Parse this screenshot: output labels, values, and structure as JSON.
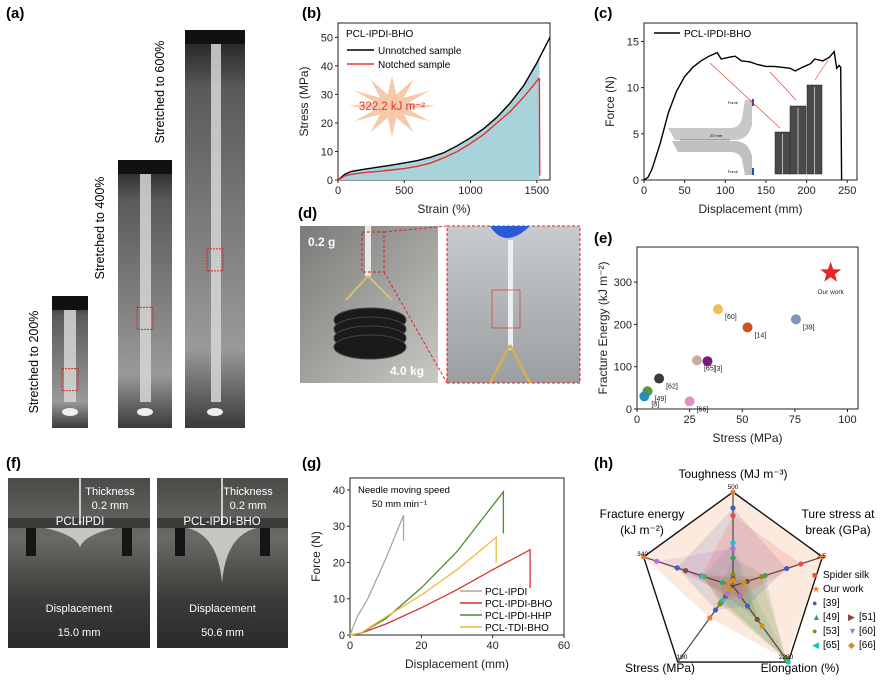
{
  "panel_labels": {
    "a": "(a)",
    "b": "(b)",
    "c": "(c)",
    "d": "(d)",
    "e": "(e)",
    "f": "(f)",
    "g": "(g)",
    "h": "(h)"
  },
  "panel_a": {
    "labels": [
      "Stretched to 200%",
      "Stretched to 400%",
      "Stretched to 600%"
    ]
  },
  "panel_d": {
    "top_mass": "0.2 g",
    "bottom_mass": "4.0 kg"
  },
  "panel_f": {
    "left": {
      "thickness_label": "Thickness",
      "thickness_value": "0.2 mm",
      "sample": "PCL-IPDI",
      "disp_label": "Displacement",
      "disp_value": "15.0 mm"
    },
    "right": {
      "thickness_label": "Thickness",
      "thickness_value": "0.2 mm",
      "sample": "PCL-IPDI-BHO",
      "disp_label": "Displacement",
      "disp_value": "50.6 mm"
    }
  },
  "chart_data": [
    {
      "id": "b",
      "type": "line",
      "xlabel": "Strain (%)",
      "ylabel": "Stress (MPa)",
      "xlim": [
        0,
        1600
      ],
      "ylim": [
        0,
        55
      ],
      "xticks": [
        0,
        500,
        1000,
        1500
      ],
      "yticks": [
        0,
        10,
        20,
        30,
        40,
        50
      ],
      "legend_title": "PCL-IPDI-BHO",
      "legend_placement": "top-left",
      "annotation": "322.2 kJ m⁻²",
      "fill_color": "#a9d3da",
      "series": [
        {
          "name": "Unnotched sample",
          "color": "#000000",
          "points": [
            [
              0,
              0
            ],
            [
              50,
              2
            ],
            [
              100,
              3
            ],
            [
              200,
              3.8
            ],
            [
              300,
              4.5
            ],
            [
              400,
              5.2
            ],
            [
              500,
              6
            ],
            [
              600,
              6.8
            ],
            [
              700,
              8
            ],
            [
              800,
              9.6
            ],
            [
              900,
              12
            ],
            [
              1000,
              14.8
            ],
            [
              1100,
              18
            ],
            [
              1200,
              22
            ],
            [
              1300,
              27
            ],
            [
              1400,
              33
            ],
            [
              1500,
              41
            ],
            [
              1600,
              50
            ]
          ]
        },
        {
          "name": "Notched sample",
          "color": "#e8302a",
          "points": [
            [
              0,
              0
            ],
            [
              50,
              1.4
            ],
            [
              100,
              2
            ],
            [
              200,
              2.6
            ],
            [
              300,
              3
            ],
            [
              400,
              3.5
            ],
            [
              500,
              4
            ],
            [
              600,
              4.8
            ],
            [
              700,
              6
            ],
            [
              800,
              7.8
            ],
            [
              900,
              10
            ],
            [
              1000,
              12.8
            ],
            [
              1100,
              16
            ],
            [
              1200,
              20
            ],
            [
              1300,
              24
            ],
            [
              1400,
              29
            ],
            [
              1480,
              33.5
            ],
            [
              1515,
              35.5
            ],
            [
              1520,
              35.5
            ],
            [
              1522,
              1.5
            ]
          ]
        }
      ]
    },
    {
      "id": "c",
      "type": "line",
      "xlabel": "Displacement (mm)",
      "ylabel": "Force (N)",
      "xlim": [
        0,
        262
      ],
      "ylim": [
        0,
        17
      ],
      "xticks": [
        0,
        50,
        100,
        150,
        200,
        250
      ],
      "yticks": [
        0,
        5,
        10,
        15
      ],
      "legend_placement": "top-left",
      "inset_texts": [
        "Force",
        "Force",
        "20 mm"
      ],
      "series": [
        {
          "name": "PCL-IPDI-BHO",
          "color": "#000000",
          "points": [
            [
              0,
              0
            ],
            [
              5,
              0.3
            ],
            [
              10,
              1.2
            ],
            [
              20,
              4
            ],
            [
              30,
              7.3
            ],
            [
              40,
              9.6
            ],
            [
              50,
              11.2
            ],
            [
              60,
              12.2
            ],
            [
              70,
              12.9
            ],
            [
              80,
              13.4
            ],
            [
              90,
              13.8
            ],
            [
              95,
              13.1
            ],
            [
              105,
              13.3
            ],
            [
              112,
              13.4
            ],
            [
              120,
              12.9
            ],
            [
              130,
              12.8
            ],
            [
              140,
              12.5
            ],
            [
              150,
              12.3
            ],
            [
              160,
              12.3
            ],
            [
              170,
              12.2
            ],
            [
              180,
              12.1
            ],
            [
              186,
              11.8
            ],
            [
              195,
              12.2
            ],
            [
              205,
              12.6
            ],
            [
              210,
              13.1
            ],
            [
              220,
              12.9
            ],
            [
              228,
              13.3
            ],
            [
              234,
              13.9
            ],
            [
              237,
              12.1
            ],
            [
              240,
              12.4
            ],
            [
              242,
              12.2
            ],
            [
              243,
              0
            ]
          ]
        }
      ]
    },
    {
      "id": "e",
      "type": "scatter",
      "xlabel": "Stress (MPa)",
      "ylabel": "Fracture Energy (kJ m⁻²)",
      "xlim": [
        0,
        105
      ],
      "ylim": [
        0,
        383
      ],
      "xticks": [
        0,
        25,
        50,
        75,
        100
      ],
      "yticks": [
        0,
        100,
        200,
        300
      ],
      "points": [
        {
          "label": "Our work",
          "x": 92,
          "y": 322,
          "color": "#e8262a",
          "marker": "star"
        },
        {
          "label": "[39]",
          "x": 75.5,
          "y": 212,
          "color": "#7f95b9",
          "marker": "circle"
        },
        {
          "label": "[14]",
          "x": 52.5,
          "y": 193,
          "color": "#d0531f",
          "marker": "circle"
        },
        {
          "label": "[60]",
          "x": 38.5,
          "y": 236,
          "color": "#eec055",
          "marker": "circle"
        },
        {
          "label": "[65]",
          "x": 28.5,
          "y": 115,
          "color": "#c9aba1",
          "marker": "circle"
        },
        {
          "label": "[3]",
          "x": 33.5,
          "y": 113,
          "color": "#7a1a7c",
          "marker": "circle"
        },
        {
          "label": "[62]",
          "x": 10.5,
          "y": 72,
          "color": "#3a3a3a",
          "marker": "circle"
        },
        {
          "label": "[49]",
          "x": 5,
          "y": 42,
          "color": "#5a973a",
          "marker": "circle"
        },
        {
          "label": "[8]",
          "x": 3.5,
          "y": 30,
          "color": "#2a8fb5",
          "marker": "circle"
        },
        {
          "label": "[66]",
          "x": 25,
          "y": 18,
          "color": "#e190c8",
          "marker": "circle"
        }
      ]
    },
    {
      "id": "g",
      "type": "line",
      "xlabel": "Displacement (mm)",
      "ylabel": "Force (N)",
      "xlim": [
        0,
        60
      ],
      "ylim": [
        0,
        43.3
      ],
      "xticks": [
        0,
        20,
        40,
        60
      ],
      "yticks": [
        0,
        10,
        20,
        30,
        40
      ],
      "annotation": [
        "Needle moving speed",
        "50 mm min⁻¹"
      ],
      "legend_placement": "bottom-right",
      "series": [
        {
          "name": "PCL-IPDI",
          "color": "#a8a89c",
          "points": [
            [
              0,
              0
            ],
            [
              2,
              5
            ],
            [
              5,
              10
            ],
            [
              10,
              21
            ],
            [
              15,
              33
            ],
            [
              15,
              26
            ]
          ]
        },
        {
          "name": "PCL-IPDI-BHO",
          "color": "#d8302c",
          "points": [
            [
              0,
              0
            ],
            [
              3,
              0.5
            ],
            [
              10,
              3
            ],
            [
              20,
              7.5
            ],
            [
              30,
              12.5
            ],
            [
              40,
              18
            ],
            [
              50.5,
              23.5
            ],
            [
              50.5,
              13
            ]
          ]
        },
        {
          "name": "PCL-IPDI-HHP",
          "color": "#4f8a30",
          "points": [
            [
              0,
              0
            ],
            [
              3,
              0.5
            ],
            [
              10,
              4.5
            ],
            [
              20,
              13
            ],
            [
              30,
              23
            ],
            [
              43,
              39.5
            ],
            [
              43,
              28
            ]
          ]
        },
        {
          "name": "PCL-TDI-BHO",
          "color": "#f0b840",
          "points": [
            [
              0,
              0
            ],
            [
              3,
              0.5
            ],
            [
              10,
              5
            ],
            [
              20,
              11
            ],
            [
              30,
              18
            ],
            [
              38,
              24.5
            ],
            [
              41,
              27
            ],
            [
              41,
              20
            ]
          ]
        }
      ]
    },
    {
      "id": "h",
      "type": "radar",
      "axes": [
        {
          "label": [
            "Toughness (MJ m⁻³)"
          ],
          "max": 500,
          "max_label": "500"
        },
        {
          "label": [
            "Ture stress at",
            "break (GPa)"
          ],
          "max": 2.5,
          "max_label": "2.5"
        },
        {
          "label": [
            "Elongation (%)"
          ],
          "max": 2280,
          "max_label": "2280"
        },
        {
          "label": [
            "Stress (MPa)"
          ],
          "max": 190,
          "max_label": "190"
        },
        {
          "label": [
            "Fracture energy",
            "(kJ m⁻²)"
          ],
          "max": 340,
          "max_label": "340"
        }
      ],
      "series": [
        {
          "name": "Spider silk",
          "color": "#f04848",
          "marker": "■",
          "values": [
            375,
            1.9,
            300,
            40,
            120
          ]
        },
        {
          "name": "Our work",
          "color": "#f07a30",
          "marker": "★",
          "values": [
            500,
            2.5,
            2200,
            80,
            340
          ]
        },
        {
          "name": "[39]",
          "color": "#3f5fc8",
          "marker": "●",
          "values": [
            415,
            1.5,
            600,
            60,
            212
          ]
        },
        {
          "name": "[49]",
          "color": "#3aa060",
          "marker": "▲",
          "values": [
            150,
            0.9,
            2150,
            40,
            40
          ]
        },
        {
          "name": "[53]",
          "color": "#8a8a12",
          "marker": "●",
          "values": [
            60,
            0.8,
            2200,
            45,
            110
          ]
        },
        {
          "name": "[65]",
          "color": "#20c0c8",
          "marker": "◀",
          "values": [
            230,
            0.4,
            2280,
            35,
            115
          ]
        },
        {
          "name": "[51]",
          "color": "#8a4a3a",
          "marker": "▶",
          "values": [
            40,
            0.4,
            1000,
            25,
            180
          ]
        },
        {
          "name": "[60]",
          "color": "#b070e0",
          "marker": "▼",
          "values": [
            200,
            0.3,
            300,
            20,
            290
          ]
        },
        {
          "name": "[66]",
          "color": "#d09020",
          "marker": "◆",
          "values": [
            30,
            0.3,
            1200,
            10,
            20
          ]
        }
      ]
    }
  ]
}
